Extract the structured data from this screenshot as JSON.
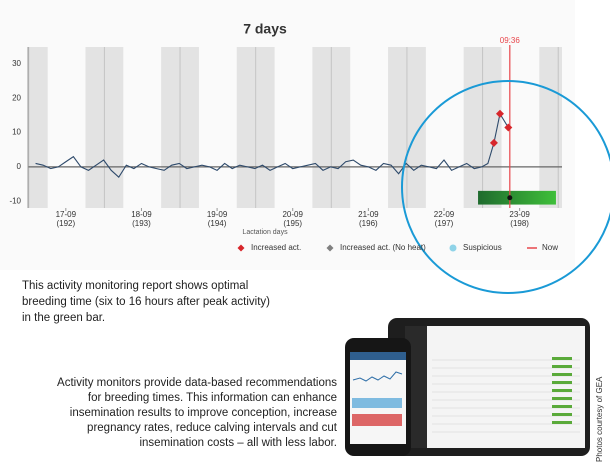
{
  "chart_data": {
    "type": "line",
    "title": "7 days",
    "xlabel": "Lactation days",
    "color": "#2e4a6b",
    "x": [
      191.6,
      191.7,
      191.8,
      191.9,
      192.0,
      192.1,
      192.2,
      192.3,
      192.4,
      192.5,
      192.6,
      192.7,
      192.8,
      192.9,
      193.0,
      193.1,
      193.2,
      193.3,
      193.4,
      193.5,
      193.6,
      193.7,
      193.8,
      193.9,
      194.0,
      194.1,
      194.2,
      194.3,
      194.4,
      194.5,
      194.6,
      194.7,
      194.8,
      194.9,
      195.0,
      195.1,
      195.2,
      195.3,
      195.4,
      195.5,
      195.6,
      195.7,
      195.8,
      195.9,
      196.0,
      196.1,
      196.2,
      196.3,
      196.4,
      196.5,
      196.6,
      196.7,
      196.8,
      196.9,
      197.0,
      197.1,
      197.2,
      197.3,
      197.4,
      197.5,
      197.58,
      197.66,
      197.74,
      197.85
    ],
    "values": [
      1,
      0.5,
      -0.5,
      0,
      1.5,
      3,
      0,
      -1,
      0.5,
      2,
      -1,
      -3,
      0.5,
      -0.5,
      1,
      0,
      -0.5,
      -1,
      0.5,
      1,
      -0.5,
      0,
      0.5,
      0,
      -1,
      1,
      -0.5,
      0.5,
      0,
      -0.5,
      0.5,
      -1,
      0,
      1,
      -0.5,
      0,
      0.5,
      1,
      -1,
      0,
      -0.5,
      1.5,
      2,
      0.5,
      0,
      -1,
      1,
      0.5,
      -2,
      1,
      -1,
      0.5,
      0,
      -0.5,
      2,
      -1,
      0,
      1,
      -0.5,
      0,
      1,
      7,
      15.5,
      11.5
    ],
    "series": [
      {
        "name": "Increased act.",
        "color": "#d7262b",
        "marker": "diamond",
        "x": [
          197.66,
          197.74,
          197.85
        ],
        "values": [
          7,
          15.5,
          11.5
        ]
      },
      {
        "name": "Increased act. (No heat)",
        "color": "#808080",
        "marker": "diamond",
        "x": [],
        "values": []
      },
      {
        "name": "Suspicious",
        "color": "#8fd3e8",
        "marker": "circle",
        "x": [],
        "values": []
      }
    ],
    "now": {
      "name": "Now",
      "label": "09:36",
      "x": 197.87,
      "color": "#e8474c"
    },
    "night_bands": [
      [
        191.26,
        191.76
      ],
      [
        192.26,
        192.76
      ],
      [
        193.26,
        193.76
      ],
      [
        194.26,
        194.76
      ],
      [
        195.26,
        195.76
      ],
      [
        196.26,
        196.76
      ],
      [
        197.26,
        197.76
      ],
      [
        198.26,
        198.76
      ]
    ],
    "breeding_window": {
      "x": [
        197.45,
        198.48
      ],
      "colors": [
        "#1f6b2e",
        "#3fbf3a"
      ]
    },
    "xlim": [
      191.5,
      198.56
    ],
    "ylim": [
      -12,
      35
    ],
    "yticks": [
      -10,
      0,
      10,
      20,
      30
    ],
    "xticks": [
      {
        "value": 192,
        "label": "17-09 (192)"
      },
      {
        "value": 193,
        "label": "18-09 (193)"
      },
      {
        "value": 194,
        "label": "19-09 (194)"
      },
      {
        "value": 195,
        "label": "20-09 (195)"
      },
      {
        "value": 196,
        "label": "21-09 (196)"
      },
      {
        "value": 197,
        "label": "22-09 (197)"
      },
      {
        "value": 198,
        "label": "23-09 (198)"
      }
    ]
  },
  "captions": {
    "report": [
      "This activity monitoring report shows optimal",
      "breeding time (six to 16 hours after peak activity)",
      "in the green bar."
    ],
    "monitors": [
      "Activity monitors provide data-based recommendations",
      "for breeding times. This information can enhance",
      "insemination results to improve conception, increase",
      "pregnancy rates, reduce calving intervals and cut",
      "insemination costs – all with less labor."
    ],
    "credit": "Photos courtesy of GEA"
  }
}
